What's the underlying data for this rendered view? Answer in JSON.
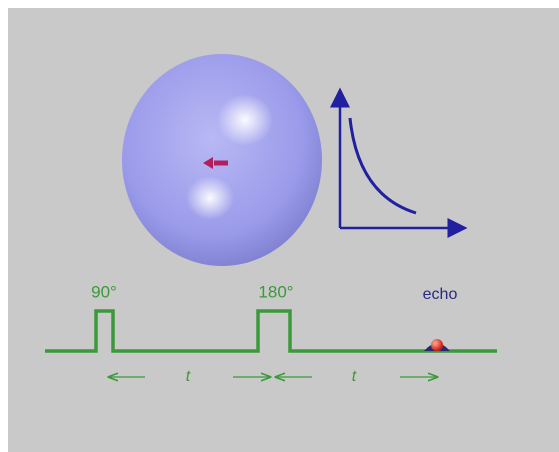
{
  "pulse_sequence": {
    "pulse_1": "90°",
    "pulse_2": "180°",
    "echo": "echo",
    "interval_1": "t",
    "interval_2": "t"
  }
}
